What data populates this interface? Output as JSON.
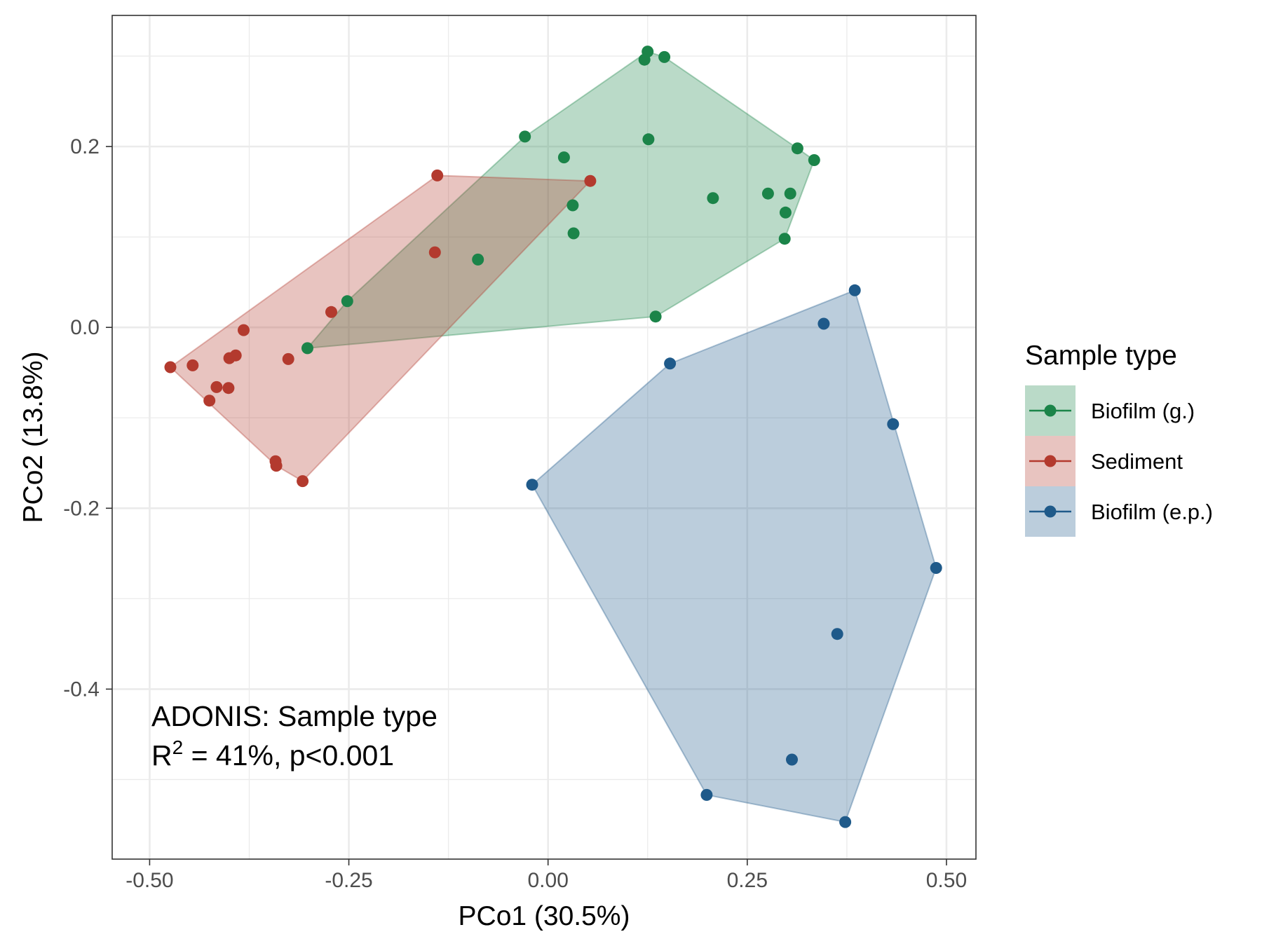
{
  "chart_data": {
    "type": "scatter",
    "xlabel": "PCo1 (30.5%)",
    "ylabel": "PCo2 (13.8%)",
    "xlim": [
      -0.547,
      0.537
    ],
    "ylim": [
      -0.588,
      0.345
    ],
    "x_ticks": [
      -0.5,
      -0.25,
      0.0,
      0.25,
      0.5
    ],
    "x_tick_labels": [
      "-0.50",
      "-0.25",
      "0.00",
      "0.25",
      "0.50"
    ],
    "y_ticks": [
      -0.4,
      -0.2,
      0.0,
      0.2
    ],
    "y_tick_labels": [
      "-0.4",
      "-0.2",
      "0.0",
      "0.2"
    ],
    "grid": true,
    "hull": true,
    "legend_title": "Sample type",
    "legend_position": "right",
    "annotation": {
      "line1": "ADONIS: Sample type",
      "line2_prefix": "R",
      "line2_sup": "2",
      "line2_suffix": " = 41%, p<0.001"
    },
    "series": [
      {
        "name": "Biofilm (g.)",
        "color": "#1b8449",
        "points": [
          [
            0.125,
            0.305
          ],
          [
            0.146,
            0.299
          ],
          [
            0.121,
            0.296
          ],
          [
            -0.029,
            0.211
          ],
          [
            0.02,
            0.188
          ],
          [
            0.126,
            0.208
          ],
          [
            0.313,
            0.198
          ],
          [
            0.334,
            0.185
          ],
          [
            0.207,
            0.143
          ],
          [
            0.276,
            0.148
          ],
          [
            0.304,
            0.148
          ],
          [
            0.298,
            0.127
          ],
          [
            0.031,
            0.135
          ],
          [
            0.032,
            0.104
          ],
          [
            0.297,
            0.098
          ],
          [
            -0.088,
            0.075
          ],
          [
            -0.252,
            0.029
          ],
          [
            0.135,
            0.012
          ],
          [
            -0.302,
            -0.023
          ]
        ]
      },
      {
        "name": "Sediment",
        "color": "#b33a2e",
        "points": [
          [
            -0.139,
            0.168
          ],
          [
            0.053,
            0.162
          ],
          [
            -0.142,
            0.083
          ],
          [
            -0.272,
            0.017
          ],
          [
            -0.382,
            -0.003
          ],
          [
            -0.392,
            -0.031
          ],
          [
            -0.4,
            -0.034
          ],
          [
            -0.326,
            -0.035
          ],
          [
            -0.474,
            -0.044
          ],
          [
            -0.446,
            -0.042
          ],
          [
            -0.416,
            -0.066
          ],
          [
            -0.401,
            -0.067
          ],
          [
            -0.425,
            -0.081
          ],
          [
            -0.342,
            -0.148
          ],
          [
            -0.341,
            -0.153
          ],
          [
            -0.308,
            -0.17
          ]
        ]
      },
      {
        "name": "Biofilm (e.p.)",
        "color": "#1f5a8a",
        "points": [
          [
            0.385,
            0.041
          ],
          [
            0.346,
            0.004
          ],
          [
            0.153,
            -0.04
          ],
          [
            0.433,
            -0.107
          ],
          [
            -0.02,
            -0.174
          ],
          [
            0.487,
            -0.266
          ],
          [
            0.363,
            -0.339
          ],
          [
            0.306,
            -0.478
          ],
          [
            0.199,
            -0.517
          ],
          [
            0.373,
            -0.547
          ]
        ]
      }
    ]
  }
}
